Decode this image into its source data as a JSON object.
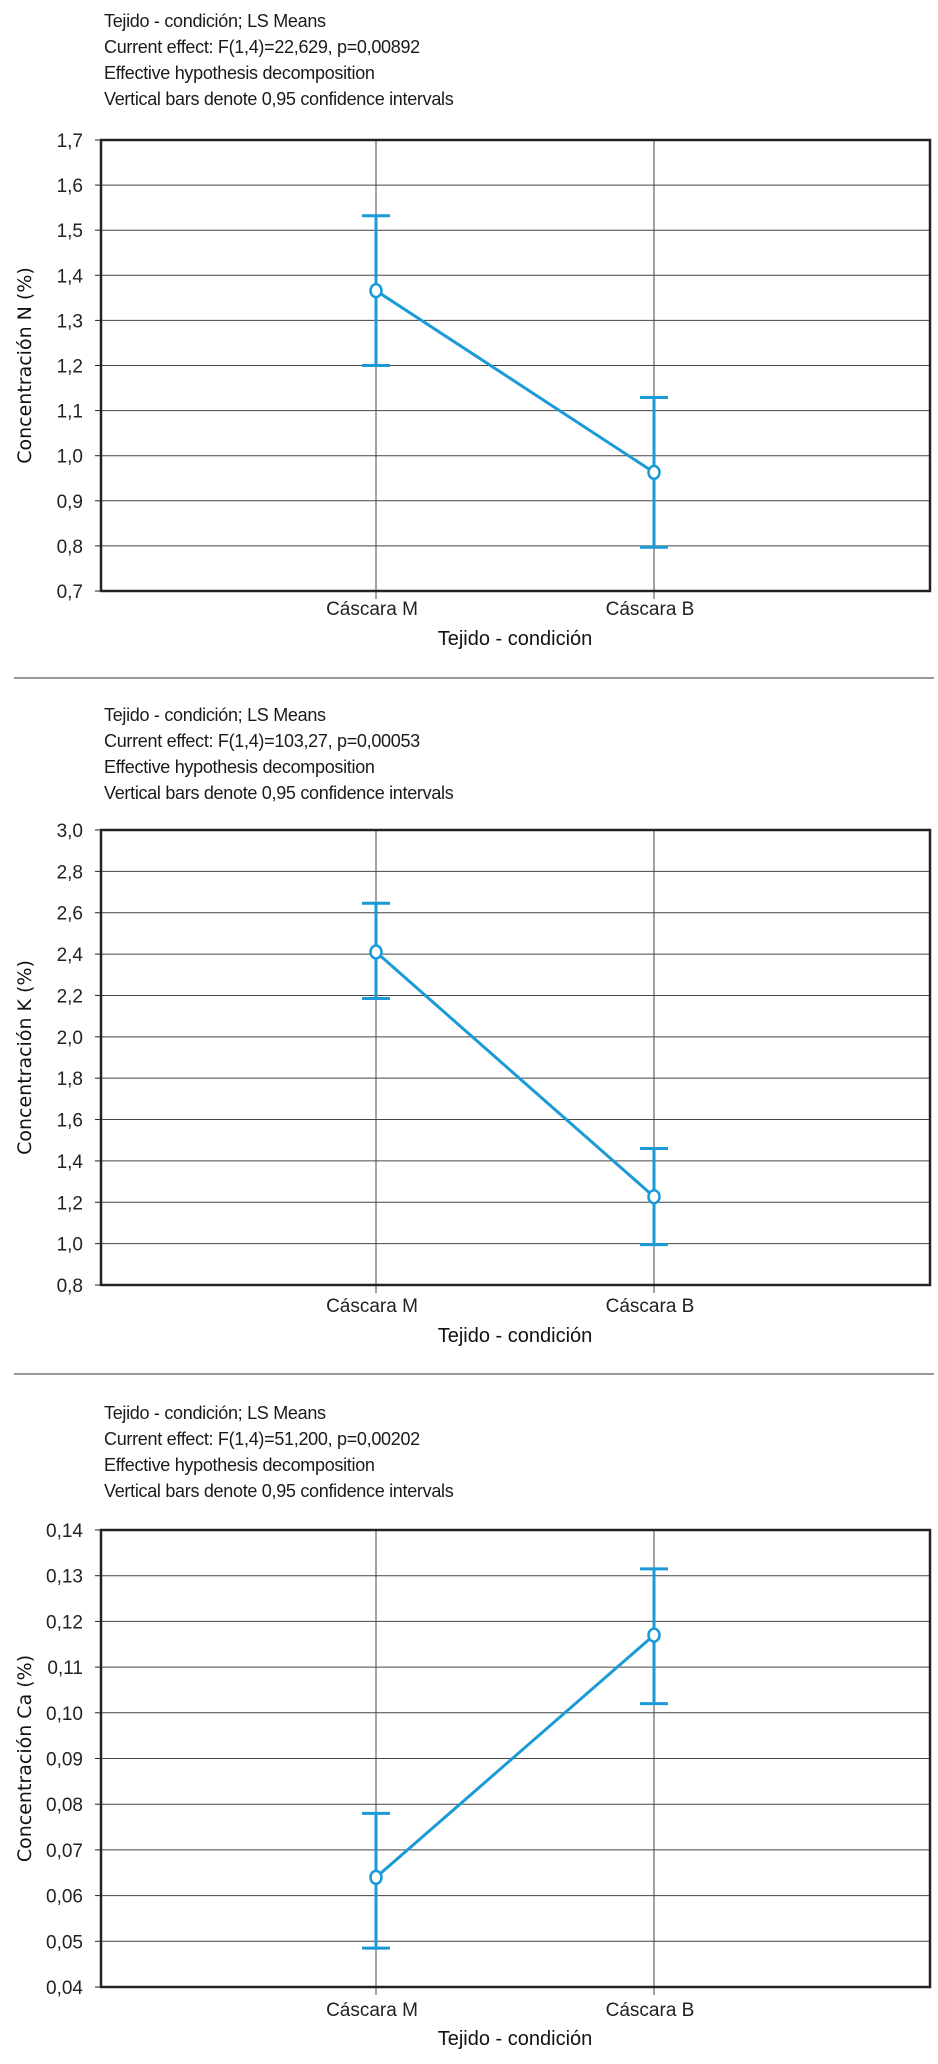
{
  "chart_data": [
    {
      "type": "line",
      "header": [
        "Tejido - condición; LS Means",
        "Current effect: F(1,4)=22,629, p=0,00892",
        "Effective hypothesis decomposition",
        "Vertical bars denote 0,95 confidence intervals"
      ],
      "xlabel": "Tejido - condición",
      "ylabel": "Concentración N (%)",
      "categories": [
        "Cáscara M",
        "Cáscara B"
      ],
      "ylim": [
        0.7,
        1.7
      ],
      "yticks": [
        "0,7",
        "0,8",
        "0,9",
        "1,0",
        "1,1",
        "1,2",
        "1,3",
        "1,4",
        "1,5",
        "1,6",
        "1,7"
      ],
      "yticks_values": [
        0.7,
        0.8,
        0.9,
        1.0,
        1.1,
        1.2,
        1.3,
        1.4,
        1.5,
        1.6,
        1.7
      ],
      "means": [
        1.366,
        0.963
      ],
      "ci_low": [
        1.2,
        0.797
      ],
      "ci_high": [
        1.532,
        1.129
      ],
      "grid": true
    },
    {
      "type": "line",
      "header": [
        "Tejido - condición; LS Means",
        "Current effect: F(1,4)=103,27, p=0,00053",
        "Effective hypothesis decomposition",
        "Vertical bars denote 0,95 confidence intervals"
      ],
      "xlabel": "Tejido - condición",
      "ylabel": "Concentración K (%)",
      "categories": [
        "Cáscara M",
        "Cáscara B"
      ],
      "ylim": [
        0.8,
        3.0
      ],
      "yticks": [
        "0,8",
        "1,0",
        "1,2",
        "1,4",
        "1,6",
        "1,8",
        "2,0",
        "2,2",
        "2,4",
        "2,6",
        "2,8",
        "3,0"
      ],
      "yticks_values": [
        0.8,
        1.0,
        1.2,
        1.4,
        1.6,
        1.8,
        2.0,
        2.2,
        2.4,
        2.6,
        2.8,
        3.0
      ],
      "means": [
        2.41,
        1.227
      ],
      "ci_low": [
        2.185,
        0.995
      ],
      "ci_high": [
        2.646,
        1.46
      ],
      "grid": true
    },
    {
      "type": "line",
      "header": [
        "Tejido - condición; LS Means",
        "Current effect: F(1,4)=51,200, p=0,00202",
        "Effective hypothesis decomposition",
        "Vertical bars denote 0,95 confidence intervals"
      ],
      "xlabel": "Tejido - condición",
      "ylabel": "Concentración Ca (%)",
      "categories": [
        "Cáscara M",
        "Cáscara B"
      ],
      "ylim": [
        0.04,
        0.14
      ],
      "yticks": [
        "0,04",
        "0,05",
        "0,06",
        "0,07",
        "0,08",
        "0,09",
        "0,10",
        "0,11",
        "0,12",
        "0,13",
        "0,14"
      ],
      "yticks_values": [
        0.04,
        0.05,
        0.06,
        0.07,
        0.08,
        0.09,
        0.1,
        0.11,
        0.12,
        0.13,
        0.14
      ],
      "means": [
        0.064,
        0.117
      ],
      "ci_low": [
        0.0485,
        0.102
      ],
      "ci_high": [
        0.078,
        0.1315
      ],
      "grid": true
    }
  ],
  "colors": {
    "series": "#1a9ad6",
    "grid": "#333333",
    "frame": "#222222",
    "divider": "#999999"
  }
}
